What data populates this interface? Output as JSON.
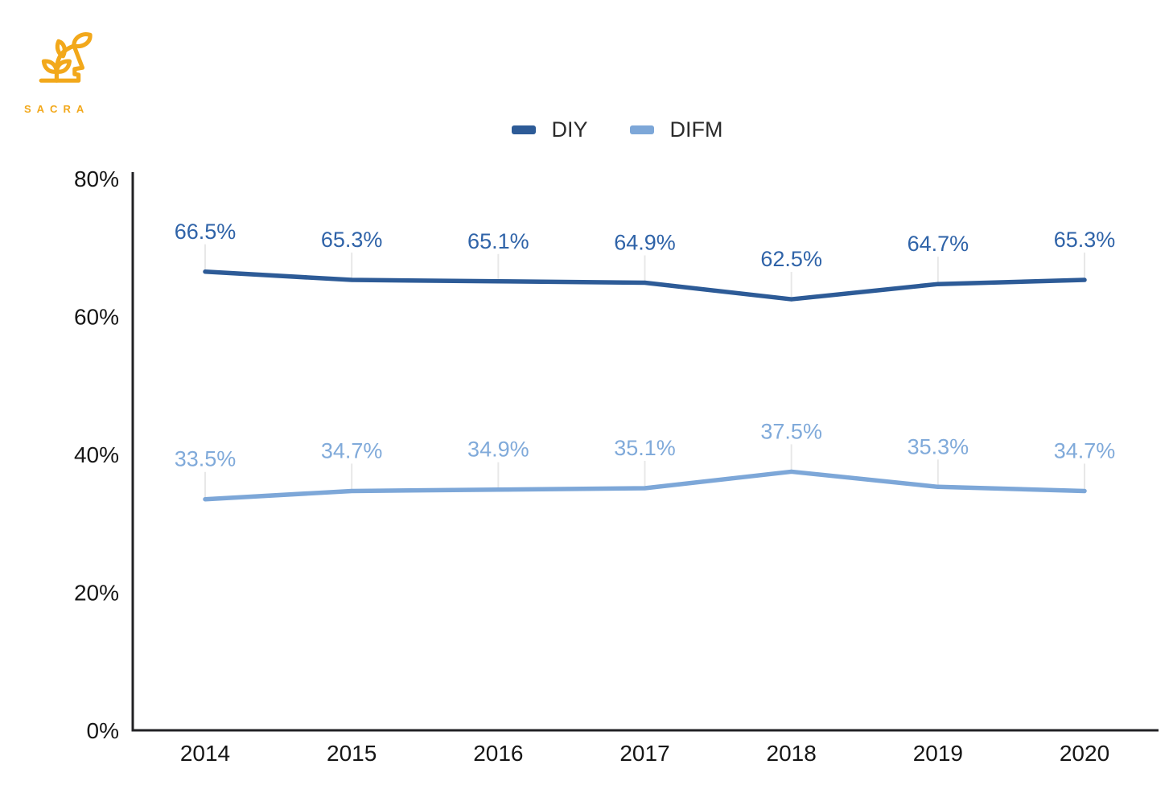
{
  "logo": {
    "brand": "SACRA",
    "accent_color": "#F2A81B",
    "icon": "head-with-plant-icon"
  },
  "chart_data": {
    "type": "line",
    "title": "",
    "x_labels": [
      "2014",
      "2015",
      "2016",
      "2017",
      "2018",
      "2019",
      "2020"
    ],
    "series": [
      {
        "name": "DIY",
        "color": "#2D5B97",
        "label_color": "#2F63A8",
        "values": [
          66.5,
          65.3,
          65.1,
          64.9,
          62.5,
          64.7,
          65.3
        ]
      },
      {
        "name": "DIFM",
        "color": "#7DA7D8",
        "label_color": "#80AADA",
        "values": [
          33.5,
          34.7,
          34.9,
          35.1,
          37.5,
          35.3,
          34.7
        ]
      }
    ],
    "data_label_format": "{value}%",
    "ylim": [
      0,
      80
    ],
    "y_ticks": [
      {
        "value": 0,
        "label": "0%"
      },
      {
        "value": 20,
        "label": "20%"
      },
      {
        "value": 40,
        "label": "40%"
      },
      {
        "value": 60,
        "label": "60%"
      },
      {
        "value": 80,
        "label": "80%"
      }
    ],
    "grid": false,
    "legend_position": "top-center",
    "axis_color": "#212124",
    "tick_label_color": "#161616",
    "leader_line_color": "#e8e8e8"
  }
}
